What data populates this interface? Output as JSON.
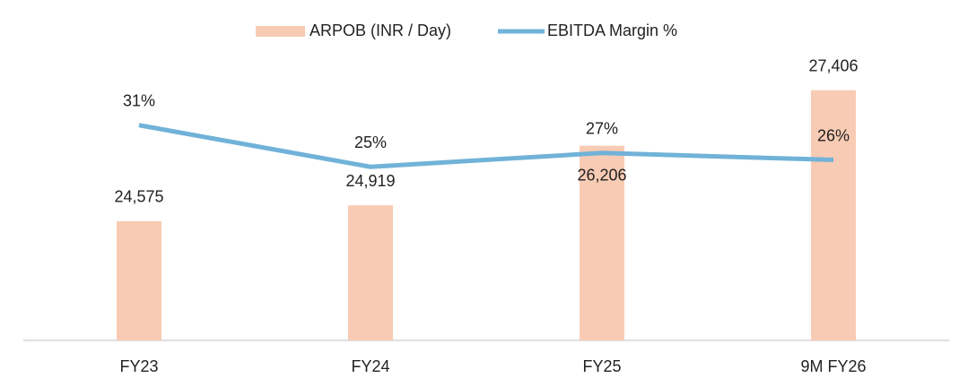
{
  "chart_data": {
    "type": "bar-line",
    "categories": [
      "FY23",
      "FY24",
      "FY25",
      "9M FY26"
    ],
    "series": [
      {
        "name": "ARPOB (INR / Day)",
        "type": "bar",
        "color": "#f8cbb4",
        "values": [
          24575,
          24919,
          26206,
          27406
        ],
        "value_labels": [
          "24,575",
          "24,919",
          "26,206",
          "27,406"
        ]
      },
      {
        "name": "EBITDA Margin %",
        "type": "line",
        "axis": "y2",
        "color": "#71b2d8",
        "values": [
          31,
          25,
          27,
          26
        ],
        "value_labels": [
          "31%",
          "25%",
          "27%",
          "26%"
        ]
      }
    ],
    "ylim": [
      22000,
      28000
    ],
    "y2lim": [
      0,
      40
    ]
  }
}
